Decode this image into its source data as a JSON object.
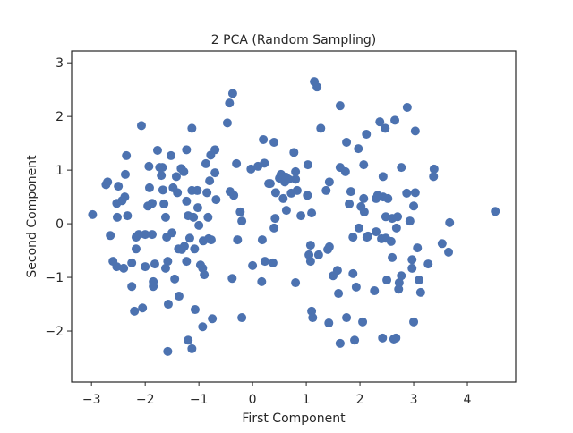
{
  "chart_data": {
    "type": "scatter",
    "title": "2 PCA (Random Sampling)",
    "x_label": "First Component",
    "y_label": "Second Component",
    "xlim": [
      -3.37,
      4.9
    ],
    "ylim": [
      -2.95,
      3.22
    ],
    "xticks": [
      {
        "value": -3,
        "label": "−3"
      },
      {
        "value": -2,
        "label": "−2"
      },
      {
        "value": -1,
        "label": "−1"
      },
      0,
      1,
      2,
      3,
      4
    ],
    "yticks": [
      {
        "value": -2,
        "label": "−2"
      },
      {
        "value": -1,
        "label": "−1"
      },
      0,
      1,
      2,
      3
    ],
    "grid": false,
    "series": [
      {
        "color": "#4c72b0",
        "x": [
          -2.98,
          -2.7,
          -2.73,
          -2.65,
          -2.6,
          -2.53,
          -2.52,
          -2.5,
          -2.53,
          -2.43,
          -2.37,
          -2.35,
          -2.38,
          -2.33,
          -2.4,
          -2.25,
          -2.25,
          -2.2,
          -2.17,
          -2.12,
          -2.17,
          -2.07,
          -2.05,
          -2.0,
          -2.0,
          -1.95,
          -1.92,
          -1.93,
          -1.87,
          -1.87,
          -1.85,
          -1.85,
          -1.82,
          -1.77,
          -1.73,
          -1.7,
          -1.67,
          -1.65,
          -1.62,
          -1.68,
          -1.6,
          -1.58,
          -1.62,
          -1.57,
          -1.58,
          -1.52,
          -1.5,
          -1.45,
          -1.48,
          -1.42,
          -1.4,
          -1.38,
          -1.37,
          -1.33,
          -1.32,
          -1.28,
          -1.27,
          -1.23,
          -1.23,
          -1.23,
          -1.2,
          -1.2,
          -1.17,
          -1.13,
          -1.13,
          -1.13,
          -1.1,
          -1.08,
          -1.07,
          -1.03,
          -1.02,
          -1.0,
          -0.97,
          -0.93,
          -0.93,
          -0.92,
          -0.9,
          -0.87,
          -0.85,
          -0.83,
          -0.82,
          -0.8,
          -0.78,
          -0.77,
          -0.75,
          -0.7,
          -0.7,
          -0.68,
          -0.47,
          -0.43,
          -0.37,
          -0.42,
          -0.38,
          -0.35,
          -0.28,
          -0.3,
          -0.23,
          -0.2,
          -0.2,
          -0.03,
          0.0,
          0.1,
          0.17,
          0.18,
          0.2,
          0.22,
          0.23,
          0.3,
          0.33,
          0.38,
          0.4,
          0.4,
          0.42,
          0.43,
          0.5,
          0.53,
          0.57,
          0.6,
          0.62,
          0.63,
          0.67,
          0.72,
          0.77,
          0.8,
          0.8,
          0.83,
          0.8,
          0.9,
          1.02,
          1.03,
          1.05,
          1.08,
          1.08,
          1.1,
          1.1,
          1.12,
          1.15,
          1.2,
          1.23,
          1.27,
          1.37,
          1.4,
          1.42,
          1.43,
          1.43,
          1.5,
          1.58,
          1.6,
          1.63,
          1.63,
          1.63,
          1.73,
          1.75,
          1.75,
          1.8,
          1.83,
          1.87,
          1.87,
          1.9,
          1.93,
          1.97,
          1.98,
          2.02,
          2.05,
          2.07,
          2.07,
          2.08,
          2.12,
          2.13,
          2.15,
          2.27,
          2.3,
          2.3,
          2.33,
          2.37,
          2.4,
          2.42,
          2.43,
          2.43,
          2.47,
          2.48,
          2.48,
          2.5,
          2.52,
          2.58,
          2.6,
          2.6,
          2.63,
          2.65,
          2.67,
          2.68,
          2.7,
          2.72,
          2.73,
          2.77,
          2.77,
          2.87,
          2.88,
          2.93,
          2.97,
          2.97,
          3.0,
          3.0,
          3.03,
          3.03,
          3.07,
          3.1,
          3.13,
          3.27,
          3.37,
          3.38,
          3.53,
          3.65,
          3.67,
          4.52
        ],
        "values": [
          0.17,
          0.78,
          0.73,
          -0.22,
          -0.7,
          -0.8,
          0.12,
          0.7,
          0.38,
          0.43,
          0.92,
          1.27,
          0.5,
          0.15,
          -0.83,
          -0.73,
          -1.17,
          -1.63,
          -0.47,
          -0.2,
          -0.25,
          1.83,
          -1.57,
          -0.2,
          -0.8,
          0.33,
          0.67,
          1.07,
          0.38,
          -0.2,
          -1.08,
          -1.17,
          -0.75,
          1.37,
          1.05,
          0.9,
          0.63,
          0.37,
          0.12,
          1.05,
          -0.25,
          -0.7,
          -0.83,
          -1.5,
          -2.38,
          1.27,
          -0.17,
          -1.03,
          0.67,
          0.88,
          0.58,
          -0.47,
          -1.35,
          1.03,
          -0.48,
          0.97,
          -0.42,
          1.38,
          0.42,
          -0.7,
          0.15,
          -2.17,
          -0.27,
          0.62,
          1.78,
          -2.33,
          0.12,
          -0.47,
          -1.6,
          0.62,
          0.3,
          -0.03,
          -0.77,
          -1.92,
          -0.83,
          -0.32,
          -0.95,
          1.12,
          0.58,
          0.12,
          -0.28,
          0.8,
          1.28,
          -0.3,
          -1.77,
          1.38,
          0.95,
          0.45,
          1.88,
          2.25,
          2.43,
          0.6,
          -1.02,
          0.53,
          -0.3,
          1.12,
          0.22,
          -1.75,
          0.05,
          1.02,
          -0.78,
          1.07,
          -1.08,
          -0.3,
          1.57,
          1.13,
          -0.7,
          0.75,
          0.75,
          -0.73,
          1.52,
          -0.08,
          0.1,
          0.58,
          0.85,
          0.92,
          0.47,
          0.78,
          0.87,
          0.25,
          0.83,
          0.57,
          1.33,
          0.83,
          0.97,
          0.62,
          -1.1,
          0.15,
          0.53,
          1.1,
          -0.58,
          -0.7,
          -0.4,
          0.2,
          -1.63,
          -1.75,
          2.65,
          2.55,
          -0.58,
          1.78,
          0.62,
          -0.48,
          -1.85,
          0.78,
          -0.43,
          -0.97,
          -0.87,
          -1.3,
          -2.23,
          2.2,
          1.05,
          0.97,
          1.52,
          -1.75,
          0.37,
          0.6,
          -0.25,
          -0.93,
          -2.17,
          -1.18,
          1.4,
          -0.08,
          0.32,
          -1.83,
          0.47,
          1.1,
          0.22,
          1.67,
          -0.25,
          -0.23,
          -1.25,
          0.47,
          -0.15,
          0.53,
          1.9,
          -0.28,
          -2.13,
          0.5,
          0.88,
          1.78,
          0.13,
          -0.27,
          -1.05,
          0.47,
          -0.33,
          0.1,
          -0.63,
          -2.15,
          1.93,
          -2.13,
          -0.08,
          0.13,
          -1.22,
          -1.1,
          1.05,
          -0.97,
          0.57,
          2.17,
          0.05,
          -0.67,
          -0.83,
          0.33,
          -1.83,
          1.73,
          0.58,
          -0.45,
          -1.05,
          -1.28,
          -0.75,
          0.88,
          1.02,
          -0.37,
          -0.53,
          0.02,
          0.23
        ]
      }
    ]
  }
}
